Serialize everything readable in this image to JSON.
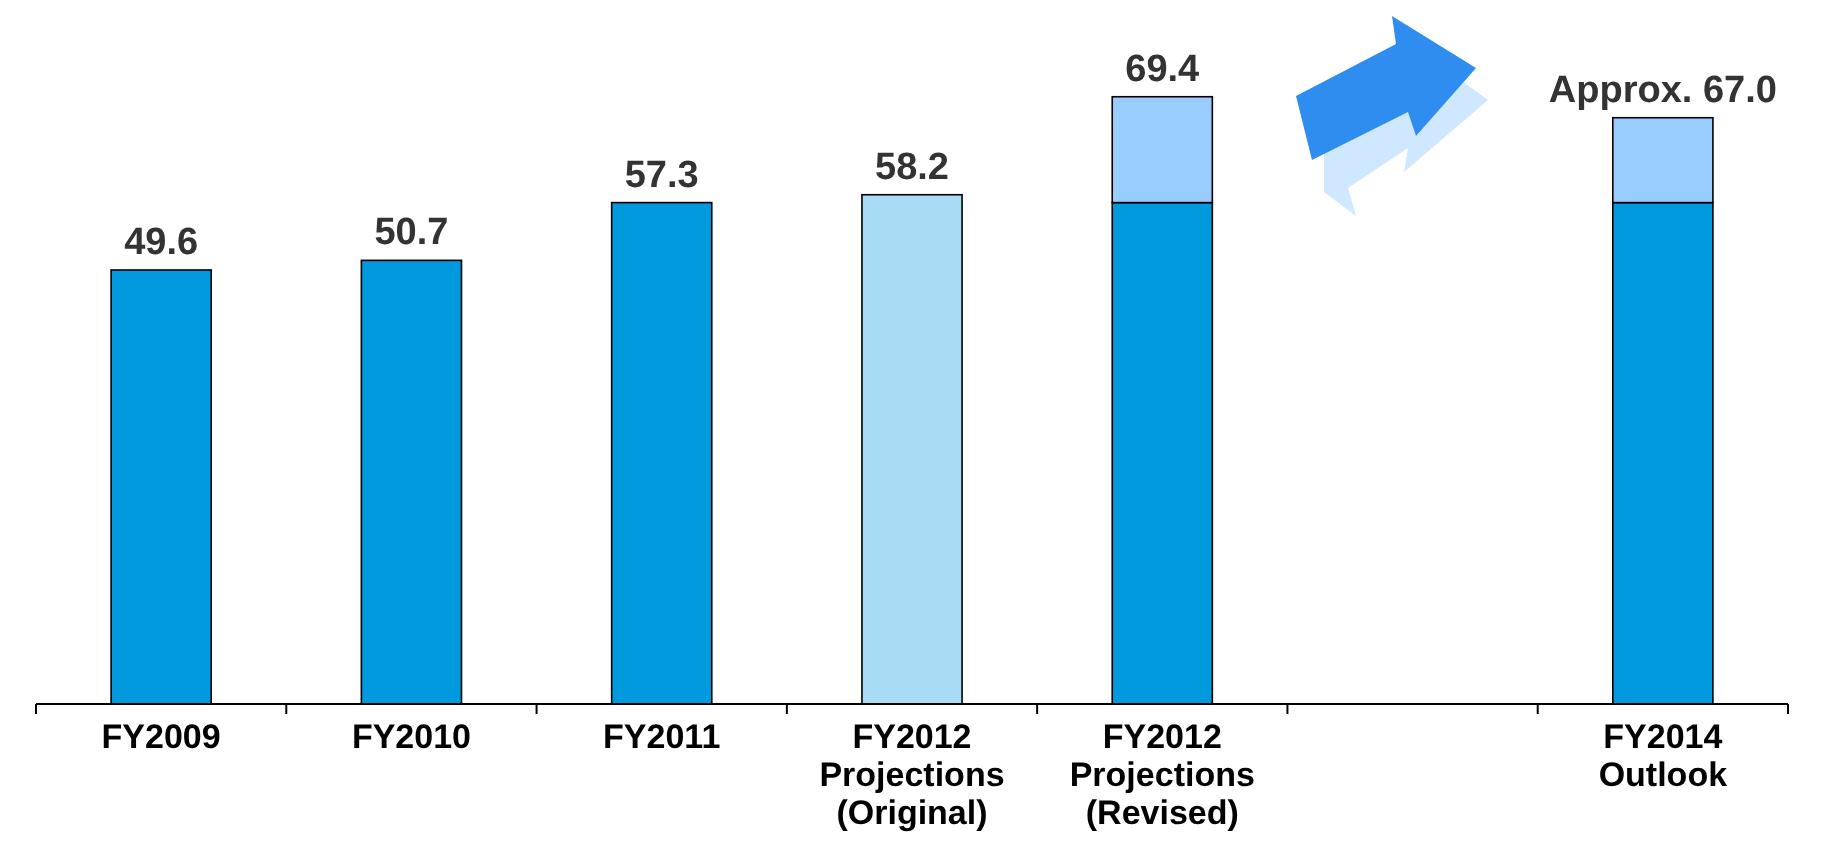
{
  "chart_data": {
    "type": "bar",
    "stacked": true,
    "categories": [
      "FY2009",
      "FY2010",
      "FY2011",
      "FY2012\nProjections\n(Original)",
      "FY2012\nProjections\n(Revised)",
      null,
      "FY2014\nOutlook"
    ],
    "series": [
      {
        "colors": [
          "#0099dd",
          "#0099dd",
          "#0099dd",
          "#a8dcf4",
          "#0099dd",
          null,
          "#0099dd"
        ],
        "values": [
          49.6,
          50.7,
          57.3,
          58.2,
          57.3,
          null,
          57.3
        ],
        "value_labels": [
          "49.6",
          "50.7",
          "57.3",
          "58.2",
          null,
          null,
          null
        ]
      },
      {
        "color": "#99ccff",
        "values": [
          null,
          null,
          null,
          null,
          12.1,
          null,
          9.7
        ]
      }
    ],
    "totals": [
      null,
      null,
      null,
      null,
      "69.4",
      null,
      "Approx. 67.0"
    ]
  }
}
